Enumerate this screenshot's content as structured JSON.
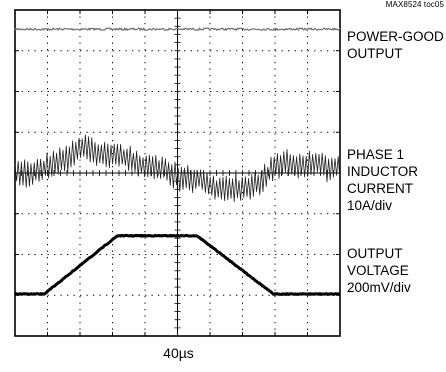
{
  "figure_tag": "MAX8524 toc05",
  "timebase": "40µs",
  "chart_data": {
    "type": "line",
    "xlabel": "40µs",
    "grid": true,
    "grid_divisions": {
      "x": 10,
      "y": 8
    },
    "xlim": [
      0,
      10
    ],
    "ylim": [
      0,
      8
    ],
    "series": [
      {
        "name": "POWER-GOOD OUTPUT",
        "label_lines": [
          "POWER-GOOD",
          "OUTPUT"
        ],
        "x": [
          0,
          10
        ],
        "y": [
          7.53,
          7.53
        ]
      },
      {
        "name": "PHASE 1 INDUCTOR CURRENT 10A/div",
        "label_lines": [
          "PHASE 1",
          "INDUCTOR",
          "CURRENT",
          "10A/div"
        ],
        "x": [
          0,
          0.8,
          2.0,
          3.0,
          6.0,
          7.0,
          8.3,
          10
        ],
        "y": [
          4.05,
          4.05,
          4.6,
          4.45,
          3.7,
          3.55,
          4.25,
          4.15
        ]
      },
      {
        "name": "OUTPUT VOLTAGE 200mV/div",
        "label_lines": [
          "OUTPUT",
          "VOLTAGE",
          "200mV/div"
        ],
        "x": [
          0,
          0.9,
          3.15,
          5.6,
          7.95,
          10
        ],
        "y": [
          1.03,
          1.03,
          2.46,
          2.46,
          1.03,
          1.03
        ]
      }
    ]
  }
}
